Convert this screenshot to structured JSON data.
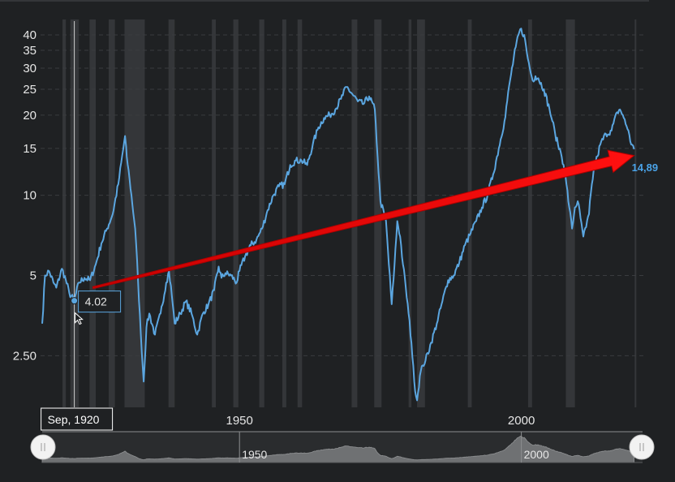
{
  "chart_data": {
    "type": "line",
    "scale": "log",
    "ylim": [
      1.6,
      47
    ],
    "xlim": [
      1915,
      2021.5
    ],
    "y_ticks": [
      {
        "value": 2.5,
        "label": "2.50"
      },
      {
        "value": 5,
        "label": "5"
      },
      {
        "value": 10,
        "label": "10"
      },
      {
        "value": 15,
        "label": "15"
      },
      {
        "value": 20,
        "label": "20"
      },
      {
        "value": 25,
        "label": "25"
      },
      {
        "value": 30,
        "label": "30"
      },
      {
        "value": 35,
        "label": "35"
      },
      {
        "value": 40,
        "label": "40"
      }
    ],
    "x_ticks": [
      {
        "value": 1950,
        "label": "1950"
      },
      {
        "value": 2000,
        "label": "2000"
      }
    ],
    "grid": "horizontal dashed",
    "recession_bands": [
      [
        1918.6,
        1919.2
      ],
      [
        1920.0,
        1921.5
      ],
      [
        1923.4,
        1924.5
      ],
      [
        1926.8,
        1927.9
      ],
      [
        1929.6,
        1933.2
      ],
      [
        1937.4,
        1938.5
      ],
      [
        1945.1,
        1945.8
      ],
      [
        1948.9,
        1949.8
      ],
      [
        1953.5,
        1954.4
      ],
      [
        1957.6,
        1958.3
      ],
      [
        1960.3,
        1961.1
      ],
      [
        1969.9,
        1970.9
      ],
      [
        1973.9,
        1975.2
      ],
      [
        1980.0,
        1980.5
      ],
      [
        1981.5,
        1982.9
      ],
      [
        1990.5,
        1991.2
      ],
      [
        2001.2,
        2001.9
      ],
      [
        2007.9,
        2009.5
      ],
      [
        2020.1,
        2020.4
      ]
    ],
    "series": [
      {
        "points": [
          [
            1915.0,
            3.3
          ],
          [
            1915.5,
            5.0
          ],
          [
            1916.2,
            5.2
          ],
          [
            1917.0,
            4.7
          ],
          [
            1917.5,
            4.5
          ],
          [
            1918.5,
            5.3
          ],
          [
            1919.2,
            4.8
          ],
          [
            1919.8,
            4.3
          ],
          [
            1920.7,
            4.02
          ],
          [
            1921.5,
            4.7
          ],
          [
            1922.5,
            4.9
          ],
          [
            1923.5,
            4.8
          ],
          [
            1924.5,
            5.5
          ],
          [
            1925.5,
            6.6
          ],
          [
            1926.5,
            7.5
          ],
          [
            1927.5,
            8.5
          ],
          [
            1928.5,
            11.0
          ],
          [
            1929.7,
            16.7
          ],
          [
            1930.0,
            14.0
          ],
          [
            1930.5,
            11.5
          ],
          [
            1931.5,
            7.5
          ],
          [
            1932.0,
            4.8
          ],
          [
            1932.5,
            3.0
          ],
          [
            1933.0,
            2.0
          ],
          [
            1933.5,
            3.2
          ],
          [
            1934.0,
            3.6
          ],
          [
            1935.0,
            3.0
          ],
          [
            1936.0,
            3.6
          ],
          [
            1937.0,
            4.7
          ],
          [
            1937.5,
            5.2
          ],
          [
            1938.0,
            4.2
          ],
          [
            1938.5,
            3.3
          ],
          [
            1939.5,
            3.6
          ],
          [
            1940.5,
            4.0
          ],
          [
            1941.5,
            3.6
          ],
          [
            1942.5,
            3.0
          ],
          [
            1943.5,
            3.6
          ],
          [
            1944.5,
            3.9
          ],
          [
            1945.5,
            4.4
          ],
          [
            1946.3,
            5.4
          ],
          [
            1946.8,
            4.9
          ],
          [
            1947.5,
            5.1
          ],
          [
            1948.5,
            5.0
          ],
          [
            1949.5,
            4.7
          ],
          [
            1950.0,
            5.2
          ],
          [
            1951.0,
            5.9
          ],
          [
            1952.0,
            6.5
          ],
          [
            1953.0,
            6.8
          ],
          [
            1954.0,
            7.5
          ],
          [
            1955.0,
            8.8
          ],
          [
            1956.0,
            10.0
          ],
          [
            1957.0,
            10.8
          ],
          [
            1958.0,
            11.0
          ],
          [
            1959.0,
            13.0
          ],
          [
            1960.0,
            13.5
          ],
          [
            1961.0,
            13.5
          ],
          [
            1962.0,
            13.0
          ],
          [
            1963.0,
            15.5
          ],
          [
            1964.0,
            18.0
          ],
          [
            1965.0,
            19.5
          ],
          [
            1966.0,
            20.0
          ],
          [
            1967.0,
            21.0
          ],
          [
            1968.0,
            23.0
          ],
          [
            1969.0,
            25.5
          ],
          [
            1970.0,
            24.0
          ],
          [
            1971.0,
            22.5
          ],
          [
            1972.0,
            22.0
          ],
          [
            1973.0,
            23.5
          ],
          [
            1974.0,
            21.0
          ],
          [
            1974.5,
            14.0
          ],
          [
            1975.0,
            9.5
          ],
          [
            1976.0,
            8.0
          ],
          [
            1976.5,
            5.5
          ],
          [
            1977.0,
            3.9
          ],
          [
            1977.5,
            5.5
          ],
          [
            1978.0,
            8.0
          ],
          [
            1978.5,
            7.0
          ],
          [
            1979.0,
            5.5
          ],
          [
            1979.5,
            4.5
          ],
          [
            1980.0,
            3.6
          ],
          [
            1980.5,
            2.8
          ],
          [
            1981.0,
            2.0
          ],
          [
            1981.5,
            1.7
          ],
          [
            1982.0,
            2.1
          ],
          [
            1982.5,
            2.3
          ],
          [
            1983.0,
            2.4
          ],
          [
            1984.0,
            2.8
          ],
          [
            1985.0,
            3.3
          ],
          [
            1986.0,
            4.0
          ],
          [
            1987.0,
            4.8
          ],
          [
            1988.0,
            5.0
          ],
          [
            1989.0,
            5.6
          ],
          [
            1990.0,
            6.5
          ],
          [
            1991.0,
            7.2
          ],
          [
            1992.0,
            8.0
          ],
          [
            1993.0,
            9.0
          ],
          [
            1994.0,
            10.0
          ],
          [
            1995.0,
            12.0
          ],
          [
            1996.0,
            15.0
          ],
          [
            1997.0,
            19.0
          ],
          [
            1998.0,
            27.0
          ],
          [
            1999.0,
            36.0
          ],
          [
            1999.8,
            42.0
          ],
          [
            2000.5,
            40.0
          ],
          [
            2001.0,
            34.0
          ],
          [
            2001.5,
            30.0
          ],
          [
            2002.0,
            27.0
          ],
          [
            2002.5,
            28.0
          ],
          [
            2003.0,
            27.5
          ],
          [
            2004.0,
            25.0
          ],
          [
            2005.0,
            21.0
          ],
          [
            2005.5,
            19.0
          ],
          [
            2006.0,
            17.0
          ],
          [
            2006.5,
            15.5
          ],
          [
            2007.0,
            14.5
          ],
          [
            2007.5,
            13.0
          ],
          [
            2008.0,
            11.0
          ],
          [
            2008.5,
            9.0
          ],
          [
            2009.0,
            7.5
          ],
          [
            2009.5,
            9.0
          ],
          [
            2010.0,
            9.5
          ],
          [
            2010.5,
            8.2
          ],
          [
            2011.0,
            7.0
          ],
          [
            2011.5,
            7.6
          ],
          [
            2012.0,
            8.5
          ],
          [
            2012.5,
            11.0
          ],
          [
            2013.0,
            13.0
          ],
          [
            2013.5,
            14.0
          ],
          [
            2014.0,
            15.5
          ],
          [
            2015.0,
            17.0
          ],
          [
            2016.0,
            17.5
          ],
          [
            2017.0,
            20.5
          ],
          [
            2017.5,
            21.0
          ],
          [
            2018.0,
            20.0
          ],
          [
            2018.5,
            18.5
          ],
          [
            2019.0,
            17.5
          ],
          [
            2019.5,
            15.5
          ],
          [
            2020.0,
            14.89
          ]
        ]
      }
    ],
    "trend_arrow": {
      "from": [
        1924.0,
        4.5
      ],
      "to": [
        2020.0,
        14.1
      ]
    },
    "tooltip": {
      "x": 1920.7,
      "y": 4.02,
      "label": "4.02"
    },
    "end_label": "14,89",
    "crosshair_date": "Sep, 1920",
    "navigator": {
      "ticks": [
        {
          "value": 1950,
          "label": "1950"
        },
        {
          "value": 2000,
          "label": "2000"
        }
      ]
    },
    "colors": {
      "background": "#1f2123",
      "line": "#5ba6e0",
      "band": "#343639",
      "grid": "#3a3c3f",
      "arrow": "#e00000",
      "tooltip_border": "#5ba6e0",
      "end_label": "#4aa3e8"
    }
  }
}
